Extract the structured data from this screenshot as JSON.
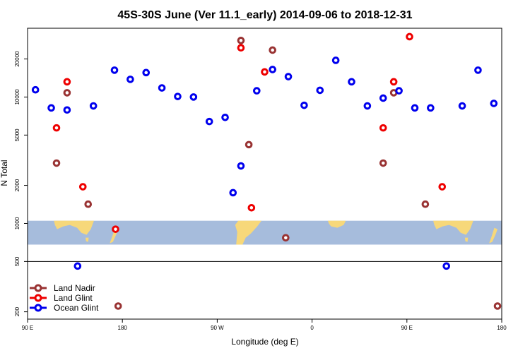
{
  "chart_data": {
    "type": "scatter",
    "title": "45S-30S June (Ver 11.1_early)   2014-09-06 to 2018-12-31",
    "xlabel": "Longitude (deg E)",
    "ylabel": "N Total",
    "xscale": "linear",
    "yscale": "log",
    "xlim": [
      90,
      540
    ],
    "ylim": [
      175,
      35000
    ],
    "x_ticks": [
      {
        "value": 90,
        "label": "90 E"
      },
      {
        "value": 180,
        "label": "180"
      },
      {
        "value": 270,
        "label": "90 W"
      },
      {
        "value": 360,
        "label": "0"
      },
      {
        "value": 450,
        "label": "90 E"
      },
      {
        "value": 540,
        "label": "180"
      }
    ],
    "y_ticks": [
      {
        "value": 200,
        "label": "200"
      },
      {
        "value": 500,
        "label": "500"
      },
      {
        "value": 1000,
        "label": "1000"
      },
      {
        "value": 2000,
        "label": "2000"
      },
      {
        "value": 5000,
        "label": "5000"
      },
      {
        "value": 10000,
        "label": "10000"
      },
      {
        "value": 20000,
        "label": "20000"
      }
    ],
    "reference_line": 500,
    "map_band": {
      "y_range": [
        680,
        1050
      ],
      "description": "Southern hemisphere land outline 45S-30S"
    },
    "legend": {
      "location": "bottom-left"
    },
    "series": [
      {
        "name": "Land Nadir",
        "color": "#993333",
        "x": [
          117.5,
          127.5,
          147.5,
          176,
          292.5,
          300,
          322.5,
          335,
          427.5,
          437.5,
          467.5,
          536
        ],
        "y": [
          3000,
          10800,
          1420,
          222,
          28000,
          4200,
          23500,
          770,
          3000,
          10800,
          1420,
          222
        ]
      },
      {
        "name": "Land Glint",
        "color": "#ee0000",
        "x": [
          117.5,
          127.5,
          142.5,
          173.5,
          292.5,
          302.5,
          315,
          427.5,
          437.5,
          452.5,
          483.5
        ],
        "y": [
          5700,
          13200,
          1950,
          900,
          24500,
          1330,
          15800,
          5700,
          13200,
          30000,
          1950
        ]
      },
      {
        "name": "Ocean Glint",
        "color": "#0000ee",
        "x": [
          97.5,
          112.5,
          127.5,
          137.5,
          152.5,
          172.5,
          187.5,
          202.5,
          217.5,
          232.5,
          247.5,
          262.5,
          277.5,
          285,
          292.5,
          307.5,
          322.5,
          337.5,
          352.5,
          367.5,
          382.5,
          397.5,
          412.5,
          427.5,
          442.5,
          457.5,
          472.5,
          487.5,
          502.5,
          517.5,
          532.5
        ],
        "y": [
          11400,
          8200,
          7900,
          460,
          8500,
          16300,
          13800,
          15600,
          11800,
          10100,
          10000,
          6400,
          6900,
          1750,
          2850,
          11200,
          16500,
          14500,
          8600,
          11300,
          19500,
          13200,
          8500,
          9800,
          11200,
          8200,
          8200,
          460,
          8500,
          16300,
          8900
        ]
      }
    ]
  }
}
